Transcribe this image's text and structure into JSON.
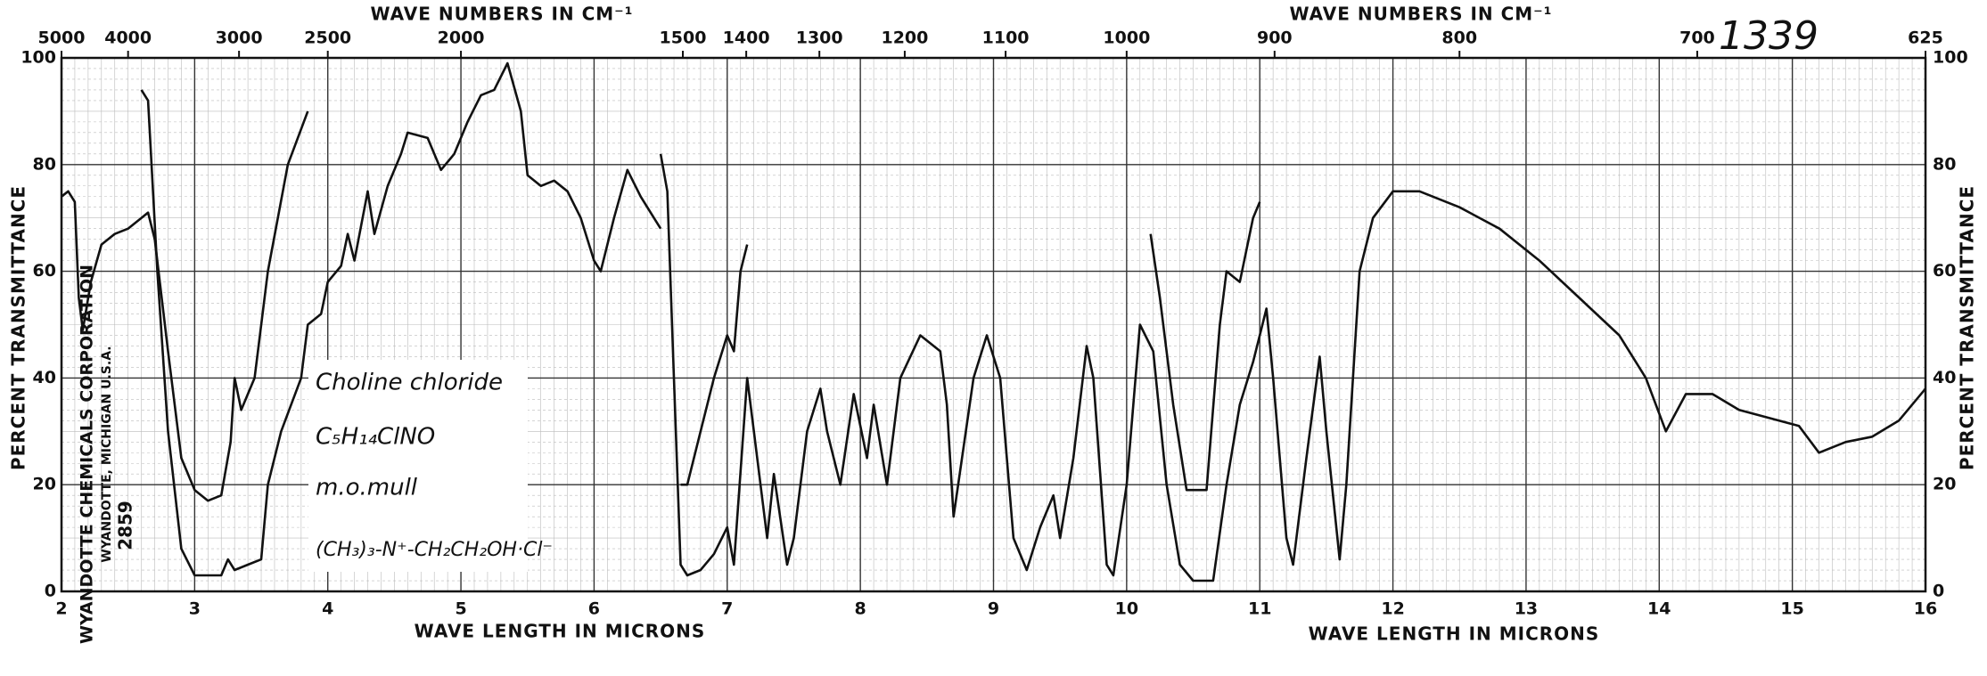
{
  "chart_data": {
    "type": "line",
    "title": "1339",
    "x_label": "WAVE LENGTH IN MICRONS",
    "x2_label": "WAVE NUMBERS IN CM⁻¹",
    "y_label": "PERCENT TRANSMITTANCE",
    "annotations": [
      "Choline chloride",
      "C₅H₁₄ClNO",
      "m.o.mull",
      "(CH₃)₃-N⁺-CH₂CH₂OH·Cl⁻",
      "WYANDOTTE CHEMICALS CORPORATION",
      "WYANDOTTE, MICHIGAN U.S.A.",
      "2859"
    ],
    "xlim": [
      2,
      16
    ],
    "xticks": [
      2,
      3,
      4,
      5,
      6,
      7,
      8,
      9,
      10,
      11,
      12,
      13,
      14,
      15,
      16
    ],
    "x2ticks": [
      5000,
      4000,
      3000,
      2500,
      2000,
      1500,
      1400,
      1300,
      1200,
      1100,
      1000,
      900,
      800,
      700,
      625
    ],
    "ylim": [
      0,
      100
    ],
    "yticks": [
      0,
      20,
      40,
      60,
      80,
      100
    ],
    "grid": true,
    "series": [
      {
        "color": "#111",
        "x": [
          2.0,
          2.05,
          2.1,
          2.13,
          2.16,
          2.22,
          2.3,
          2.4,
          2.5,
          2.6,
          2.65,
          2.7,
          2.8,
          2.9,
          3.0,
          3.1,
          3.2,
          3.27,
          3.3,
          3.35,
          3.45,
          3.55,
          3.7,
          3.85
        ],
        "values": [
          74,
          75,
          73,
          55,
          49,
          58,
          65,
          67,
          68,
          70,
          71,
          66,
          45,
          25,
          19,
          17,
          18,
          28,
          40,
          34,
          40,
          60,
          80,
          90
        ]
      },
      {
        "color": "#111",
        "x": [
          2.6,
          2.65,
          2.72,
          2.8,
          2.9,
          3.0,
          3.2,
          3.25,
          3.3,
          3.4,
          3.5,
          3.55,
          3.65,
          3.8,
          3.85,
          3.95,
          4.0,
          4.1,
          4.15,
          4.2,
          4.3,
          4.35,
          4.45,
          4.55,
          4.6,
          4.75,
          4.85,
          4.95,
          5.05,
          5.15,
          5.25,
          5.35,
          5.45,
          5.5,
          5.6,
          5.7,
          5.8,
          5.9,
          6.0,
          6.05,
          6.15,
          6.25,
          6.35,
          6.45,
          6.5
        ],
        "values": [
          94,
          92,
          60,
          30,
          8,
          3,
          3,
          6,
          4,
          5,
          6,
          20,
          30,
          40,
          50,
          52,
          58,
          61,
          67,
          62,
          75,
          67,
          76,
          82,
          86,
          85,
          79,
          82,
          88,
          93,
          94,
          99,
          90,
          78,
          76,
          77,
          75,
          70,
          62,
          60,
          70,
          79,
          74,
          70,
          68
        ]
      },
      {
        "color": "#111",
        "x": [
          6.5,
          6.55,
          6.6,
          6.65,
          6.7,
          6.8,
          6.9,
          7.0,
          7.05,
          7.15,
          7.2,
          7.3,
          7.35,
          7.45,
          7.5,
          7.6,
          7.7,
          7.75,
          7.85,
          7.95,
          8.05,
          8.1,
          8.2,
          8.3,
          8.45,
          8.6,
          8.65,
          8.7,
          8.85,
          8.95,
          9.05,
          9.15,
          9.25,
          9.35,
          9.45,
          9.5,
          9.6,
          9.7,
          9.75,
          9.85,
          9.9,
          10.0,
          10.1,
          10.2,
          10.3,
          10.4,
          10.5,
          10.65,
          10.75,
          10.85,
          10.95,
          11.05,
          11.1,
          11.2,
          11.25,
          11.35,
          11.45,
          11.5,
          11.6,
          11.65,
          11.75,
          11.85,
          12.0,
          12.2,
          12.5,
          12.8,
          13.1,
          13.4,
          13.7,
          13.9,
          14.05,
          14.2,
          14.4,
          14.6,
          14.9,
          15.05,
          15.2,
          15.4,
          15.6,
          15.8,
          16.0
        ],
        "values": [
          82,
          75,
          40,
          5,
          3,
          4,
          7,
          12,
          5,
          40,
          30,
          10,
          22,
          5,
          10,
          30,
          38,
          30,
          20,
          37,
          25,
          35,
          20,
          40,
          48,
          45,
          35,
          14,
          40,
          48,
          40,
          10,
          4,
          12,
          18,
          10,
          25,
          46,
          40,
          5,
          3,
          20,
          50,
          45,
          20,
          5,
          2,
          2,
          20,
          35,
          43,
          53,
          40,
          10,
          5,
          25,
          44,
          30,
          6,
          20,
          60,
          70,
          75,
          75,
          72,
          68,
          62,
          55,
          48,
          40,
          30,
          37,
          37,
          34,
          32,
          31,
          26,
          28,
          29,
          32,
          38
        ]
      },
      {
        "color": "#111",
        "x": [
          6.65,
          6.7,
          6.8,
          6.9,
          7.0,
          7.05,
          7.1,
          7.15
        ],
        "values": [
          20,
          20,
          30,
          40,
          48,
          45,
          60,
          65
        ]
      },
      {
        "color": "#111",
        "x": [
          10.18,
          10.25,
          10.35,
          10.45,
          10.6,
          10.7,
          10.75,
          10.85,
          10.95,
          11.0
        ],
        "values": [
          67,
          55,
          35,
          19,
          19,
          50,
          60,
          58,
          70,
          73
        ]
      }
    ]
  }
}
